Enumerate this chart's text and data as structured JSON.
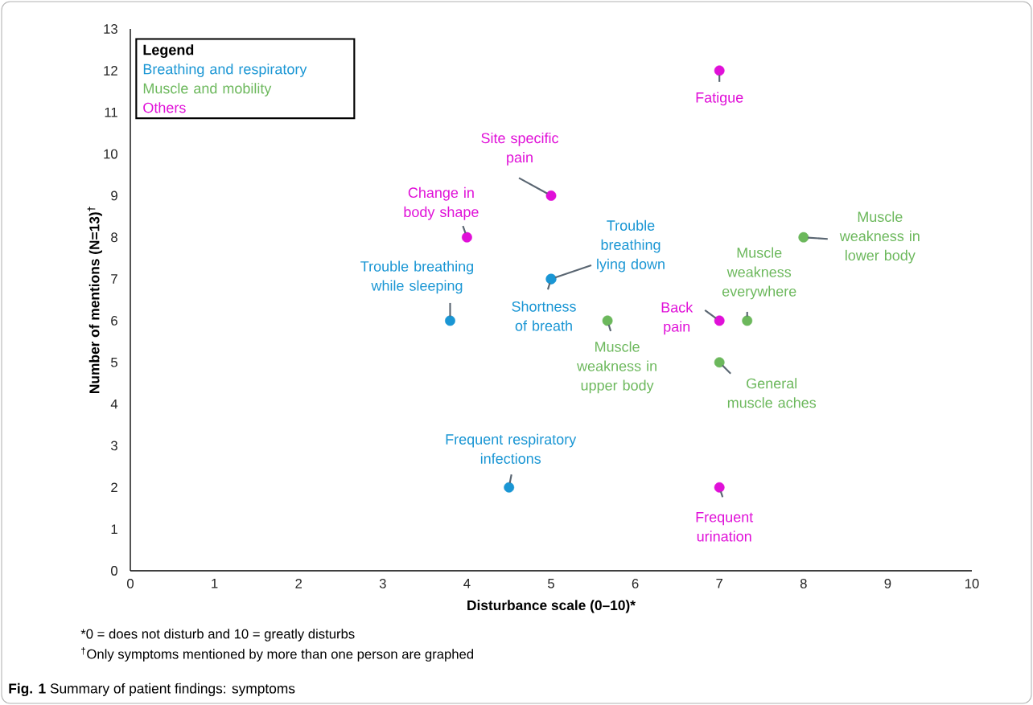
{
  "chart_data": {
    "type": "scatter",
    "title": "**Fig. 1** Summary of patient findings: symptoms",
    "xlabel": "Disturbance scale (0–10)*",
    "ylabel": "Number of mentions (N=13)$^{†}$",
    "legend_title": "Legend",
    "legend": "top left",
    "marker": "circle",
    "grid": false,
    "xlim": [
      0,
      10
    ],
    "ylim": [
      0,
      13
    ],
    "xticks": [
      0,
      1,
      2,
      3,
      4,
      5,
      6,
      7,
      8,
      9,
      10
    ],
    "yticks": [
      0,
      1,
      2,
      3,
      4,
      5,
      6,
      7,
      8,
      9,
      10,
      11,
      12,
      13
    ],
    "series": [
      {
        "name": "Breathing and respiratory",
        "color": "#1a96d4",
        "x": [
          3.8,
          5,
          5,
          4.5
        ],
        "values": [
          6,
          7,
          7,
          2
        ]
      },
      {
        "name": "Muscle and mobility",
        "color": "#6cb85c",
        "x": [
          8,
          7.33,
          5.67,
          7
        ],
        "values": [
          8,
          6,
          6,
          5
        ]
      },
      {
        "name": "Others",
        "color": "#e010d8",
        "x": [
          7,
          5,
          4,
          7,
          7
        ],
        "values": [
          12,
          9,
          8,
          6,
          2
        ]
      }
    ],
    "annotations": [
      {
        "text": "Fatigue",
        "x": 7,
        "y": 12
      },
      {
        "text": "Site specific pain",
        "x": 5,
        "y": 9
      },
      {
        "text": "Change in body shape",
        "x": 4,
        "y": 8
      },
      {
        "text": "Trouble breathing while sleeping",
        "x": 3.8,
        "y": 6
      },
      {
        "text": "Trouble breathing lying down",
        "x": 5,
        "y": 7
      },
      {
        "text": "Shortness of breath",
        "x": 5,
        "y": 7
      },
      {
        "text": "Frequent respiratory infections",
        "x": 4.5,
        "y": 2
      },
      {
        "text": "Muscle weakness in lower body",
        "x": 8,
        "y": 8
      },
      {
        "text": "Muscle weakness everywhere",
        "x": 7.33,
        "y": 6
      },
      {
        "text": "Back pain",
        "x": 7,
        "y": 6
      },
      {
        "text": "Muscle weakness in upper body",
        "x": 5.67,
        "y": 6
      },
      {
        "text": "General muscle aches",
        "x": 7,
        "y": 5
      },
      {
        "text": "Frequent urination",
        "x": 7,
        "y": 2
      },
      "*0 = does not disturb and 10 = greatly disturbs",
      "$^{†}$Only symptoms mentioned by more than one person are graphed"
    ]
  }
}
